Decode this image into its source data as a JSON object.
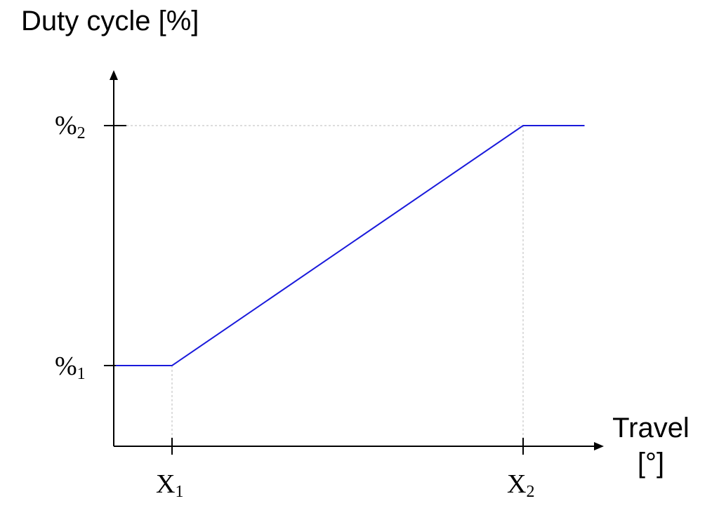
{
  "chart_data": {
    "type": "line",
    "ylabel": "Duty cycle [%]",
    "xlabel_line1": "Travel",
    "xlabel_line2": "[°]",
    "x_ticks": [
      {
        "base": "X",
        "sub": "1",
        "value": 1
      },
      {
        "base": "X",
        "sub": "2",
        "value": 2
      }
    ],
    "y_ticks": [
      {
        "base": "%",
        "sub": "1",
        "value": 1
      },
      {
        "base": "%",
        "sub": "2",
        "value": 2
      }
    ],
    "series": [
      {
        "color": "#1a1adb",
        "points": [
          {
            "x": 0.84,
            "y": 1
          },
          {
            "x": 1,
            "y": 1
          },
          {
            "x": 2,
            "y": 2
          },
          {
            "x": 2.175,
            "y": 2
          }
        ]
      }
    ],
    "xlim": [
      0.82,
      2.24
    ],
    "ylim": [
      0.67,
      2.22
    ],
    "grid": "dashed guides at tick positions",
    "guide_color": "#bbbbbb",
    "axis_color": "#000000"
  }
}
